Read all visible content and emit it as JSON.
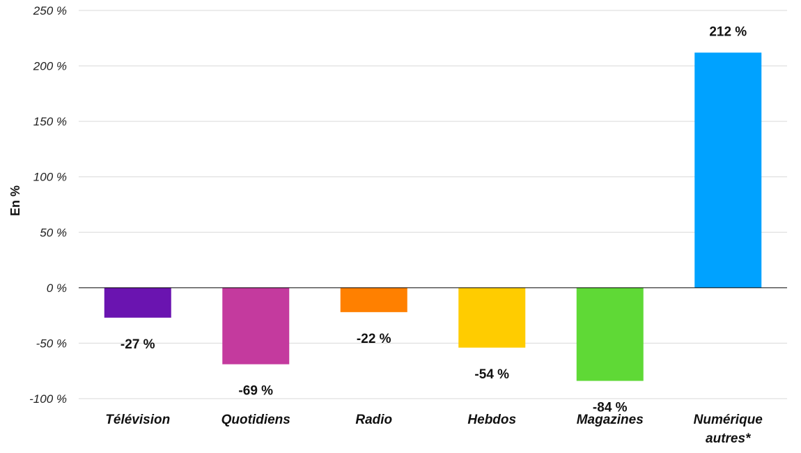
{
  "chart_data": {
    "type": "bar",
    "ylabel": "En %",
    "ylim": [
      -100,
      250
    ],
    "yticks": [
      250,
      200,
      150,
      100,
      50,
      0,
      -50,
      -100
    ],
    "ytick_labels": [
      "250 %",
      "200 %",
      "150 %",
      "100 %",
      "50 %",
      "0 %",
      "-50 %",
      "-100 %"
    ],
    "grid": true,
    "categories": [
      {
        "label": [
          "Télévision"
        ],
        "value": -27,
        "value_label": "-27 %",
        "color": "#6a14b0"
      },
      {
        "label": [
          "Quotidiens"
        ],
        "value": -69,
        "value_label": "-69 %",
        "color": "#c43a9e"
      },
      {
        "label": [
          "Radio"
        ],
        "value": -22,
        "value_label": "-22 %",
        "color": "#ff8000"
      },
      {
        "label": [
          "Hebdos"
        ],
        "value": -54,
        "value_label": "-54 %",
        "color": "#ffcc00"
      },
      {
        "label": [
          "Magazines"
        ],
        "value": -84,
        "value_label": "-84 %",
        "color": "#5fd936"
      },
      {
        "label": [
          "Numérique",
          "autres*"
        ],
        "value": 212,
        "value_label": "212 %",
        "color": "#00a2ff"
      }
    ]
  }
}
